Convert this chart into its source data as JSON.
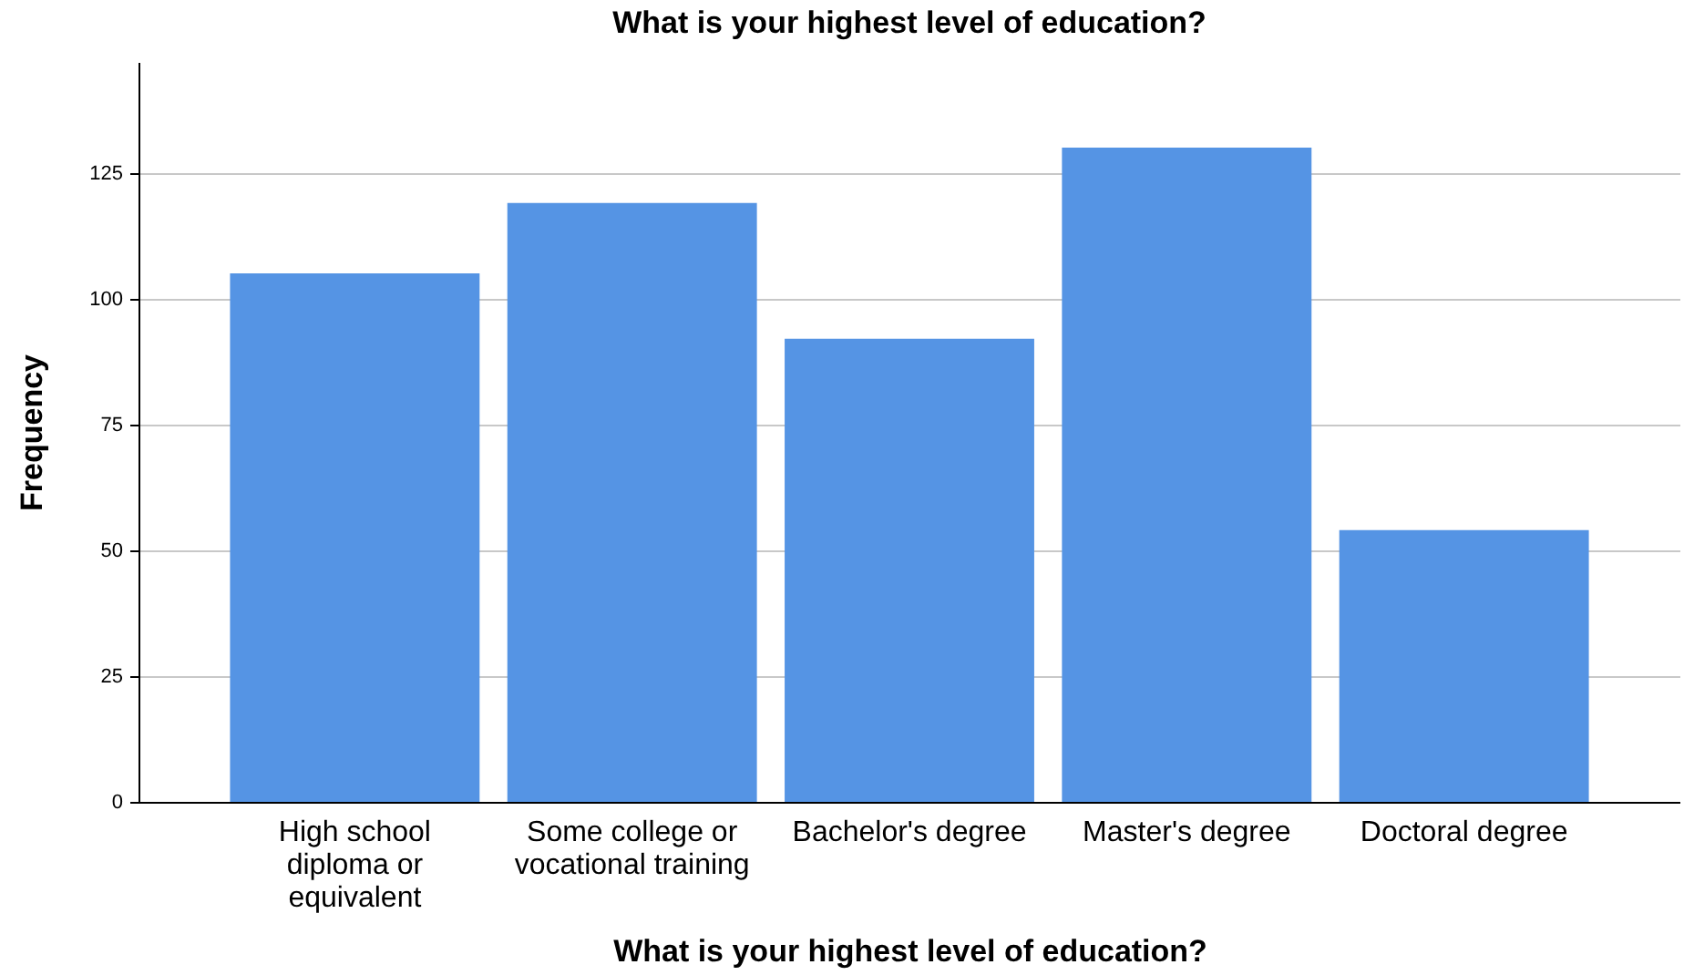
{
  "chart_data": {
    "type": "bar",
    "title": "What is your highest level of education?",
    "xlabel": "What is your highest level of education?",
    "ylabel": "Frequency",
    "categories": [
      "High school diploma or equivalent",
      "Some college or vocational training",
      "Bachelor's degree",
      "Master's degree",
      "Doctoral degree"
    ],
    "values": [
      105,
      119,
      92,
      130,
      54
    ],
    "color": "#5594e4",
    "ylim": [
      0,
      147
    ],
    "yticks": [
      0,
      25,
      50,
      75,
      100,
      125
    ],
    "grid": "y"
  }
}
